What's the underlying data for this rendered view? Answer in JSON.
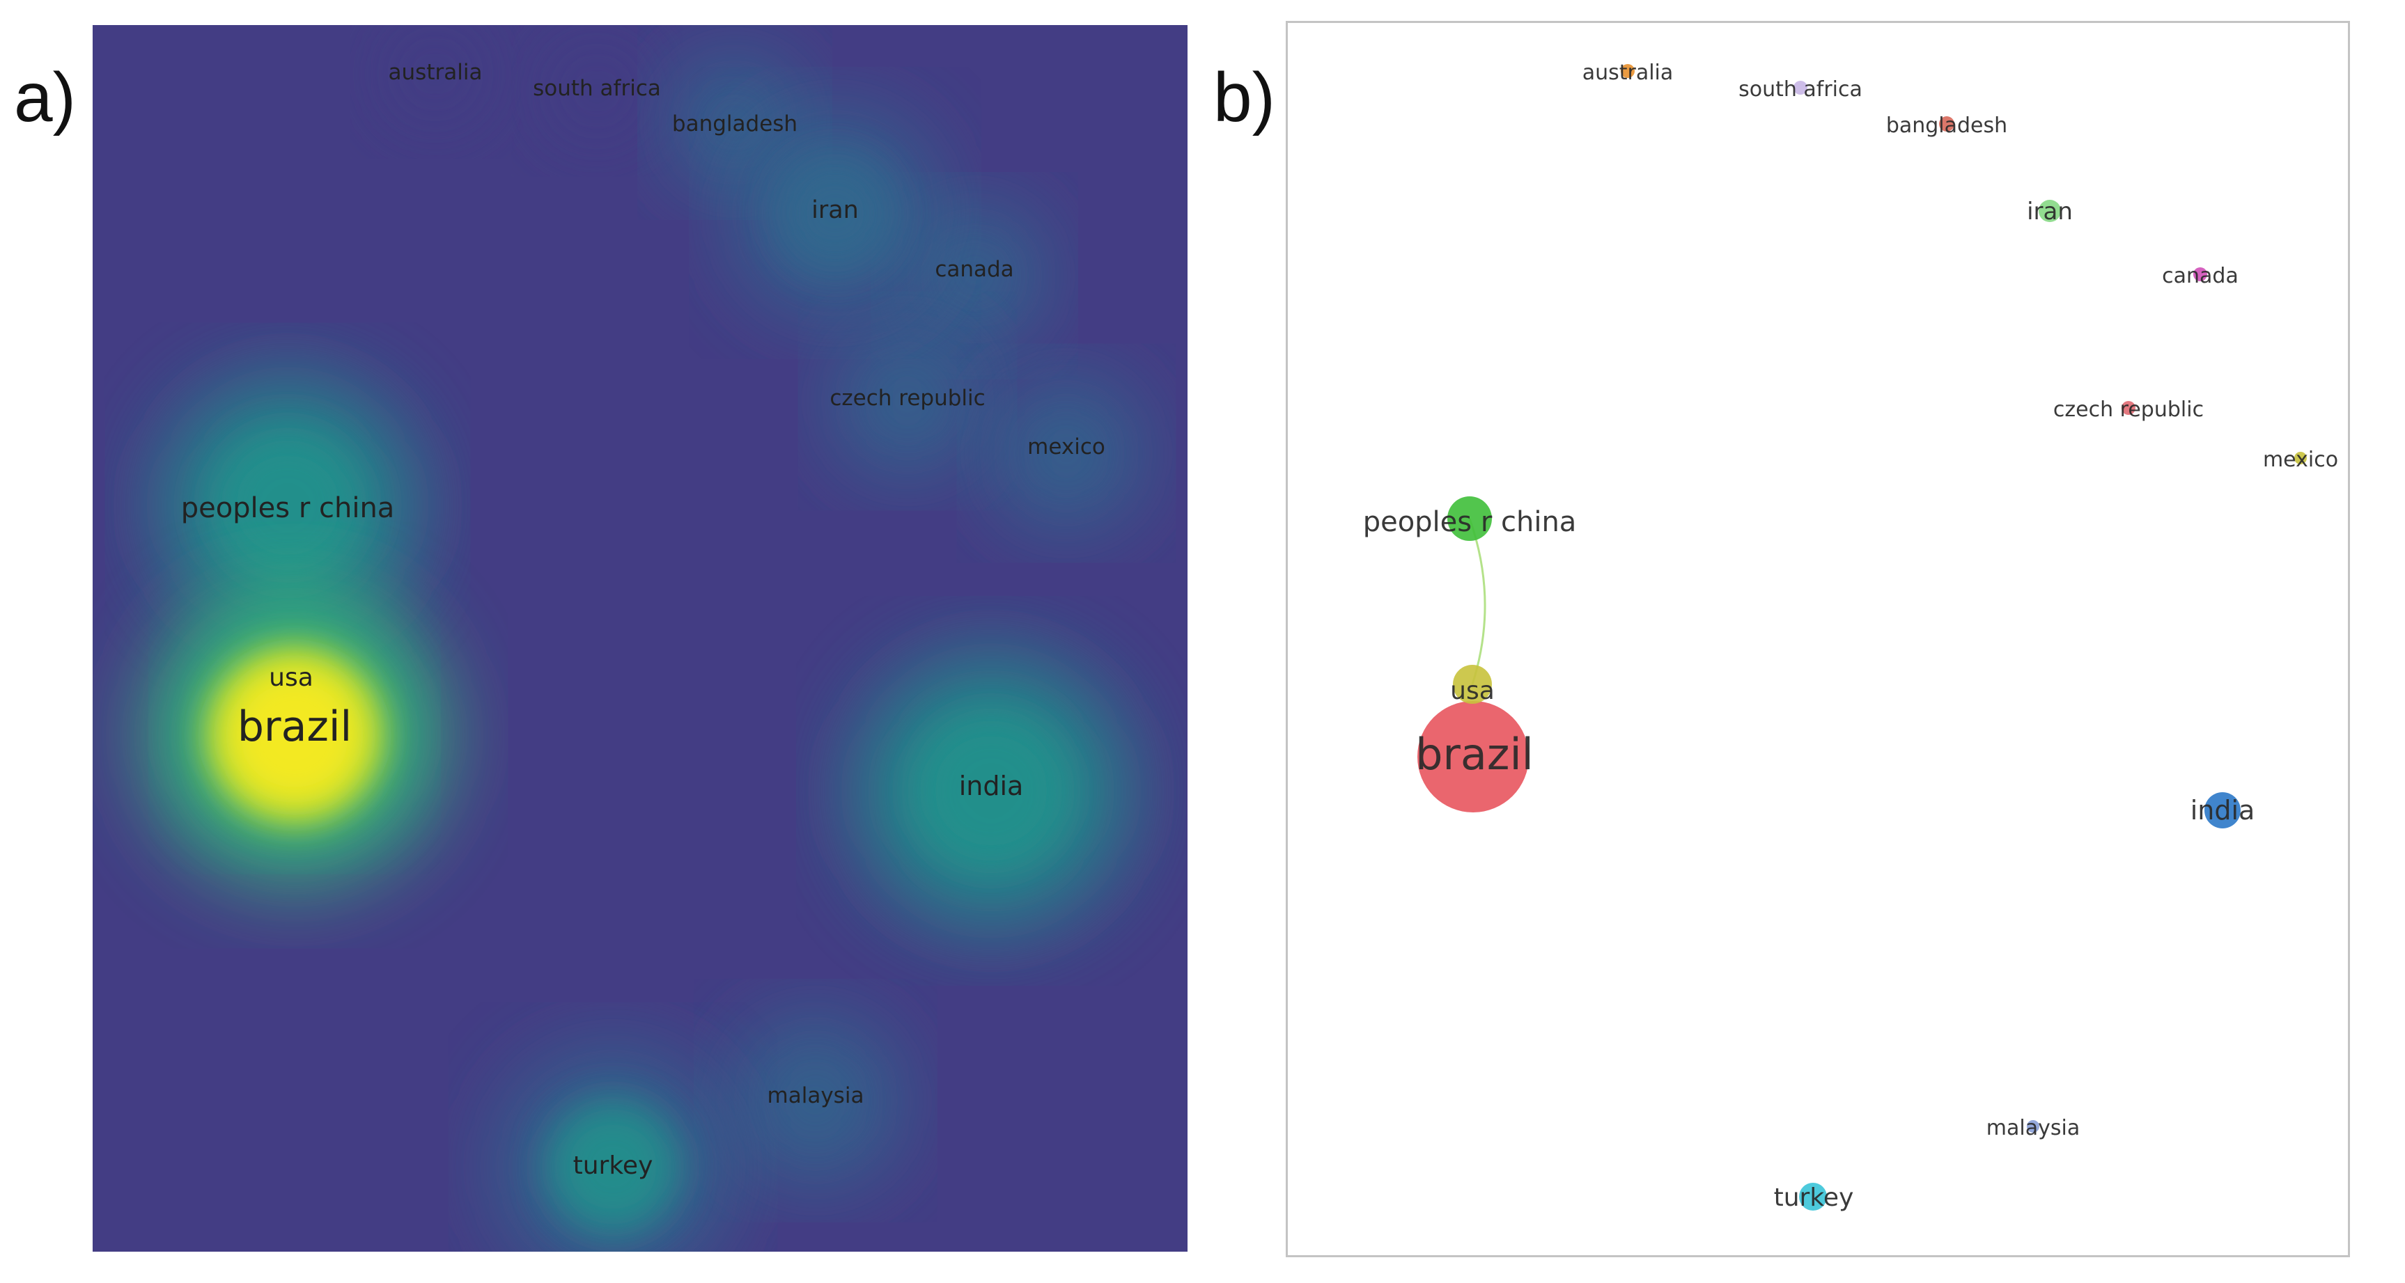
{
  "panels": {
    "a": {
      "letter": "a)"
    },
    "b": {
      "letter": "b)"
    }
  },
  "colors": {
    "density_background": "#433d84",
    "density_ramp": [
      "#433d84",
      "#31688e",
      "#21918c",
      "#35b779",
      "#b8de29",
      "#fde725"
    ],
    "node_brazil": "#e8555e",
    "node_usa": "#c8c23c",
    "node_china": "#3fbf3a",
    "node_india": "#2b78c8",
    "node_turkey": "#3ac4d8",
    "node_iran": "#86d884",
    "node_australia": "#e8902e",
    "node_south_africa": "#c8b6e6",
    "node_bangladesh": "#d8685a",
    "node_canada": "#d050b8",
    "node_czech": "#e06a72",
    "node_mexico": "#c8c23c",
    "node_malaysia": "#8aa0d8",
    "link": "#b4e28a"
  },
  "countries": [
    {
      "id": "brazil",
      "label": "brazil",
      "density": 1.0
    },
    {
      "id": "usa",
      "label": "usa",
      "density": 0.55
    },
    {
      "id": "china",
      "label": "peoples r china",
      "density": 0.55
    },
    {
      "id": "india",
      "label": "india",
      "density": 0.55
    },
    {
      "id": "turkey",
      "label": "turkey",
      "density": 0.45
    },
    {
      "id": "iran",
      "label": "iran",
      "density": 0.35
    },
    {
      "id": "australia",
      "label": "australia",
      "density": 0.15
    },
    {
      "id": "south_africa",
      "label": "south africa",
      "density": 0.15
    },
    {
      "id": "bangladesh",
      "label": "bangladesh",
      "density": 0.2
    },
    {
      "id": "canada",
      "label": "canada",
      "density": 0.2
    },
    {
      "id": "czech",
      "label": "czech republic",
      "density": 0.2
    },
    {
      "id": "mexico",
      "label": "mexico",
      "density": 0.2
    },
    {
      "id": "malaysia",
      "label": "malaysia",
      "density": 0.25
    }
  ],
  "links": [
    {
      "from": "china",
      "to": "usa"
    }
  ]
}
